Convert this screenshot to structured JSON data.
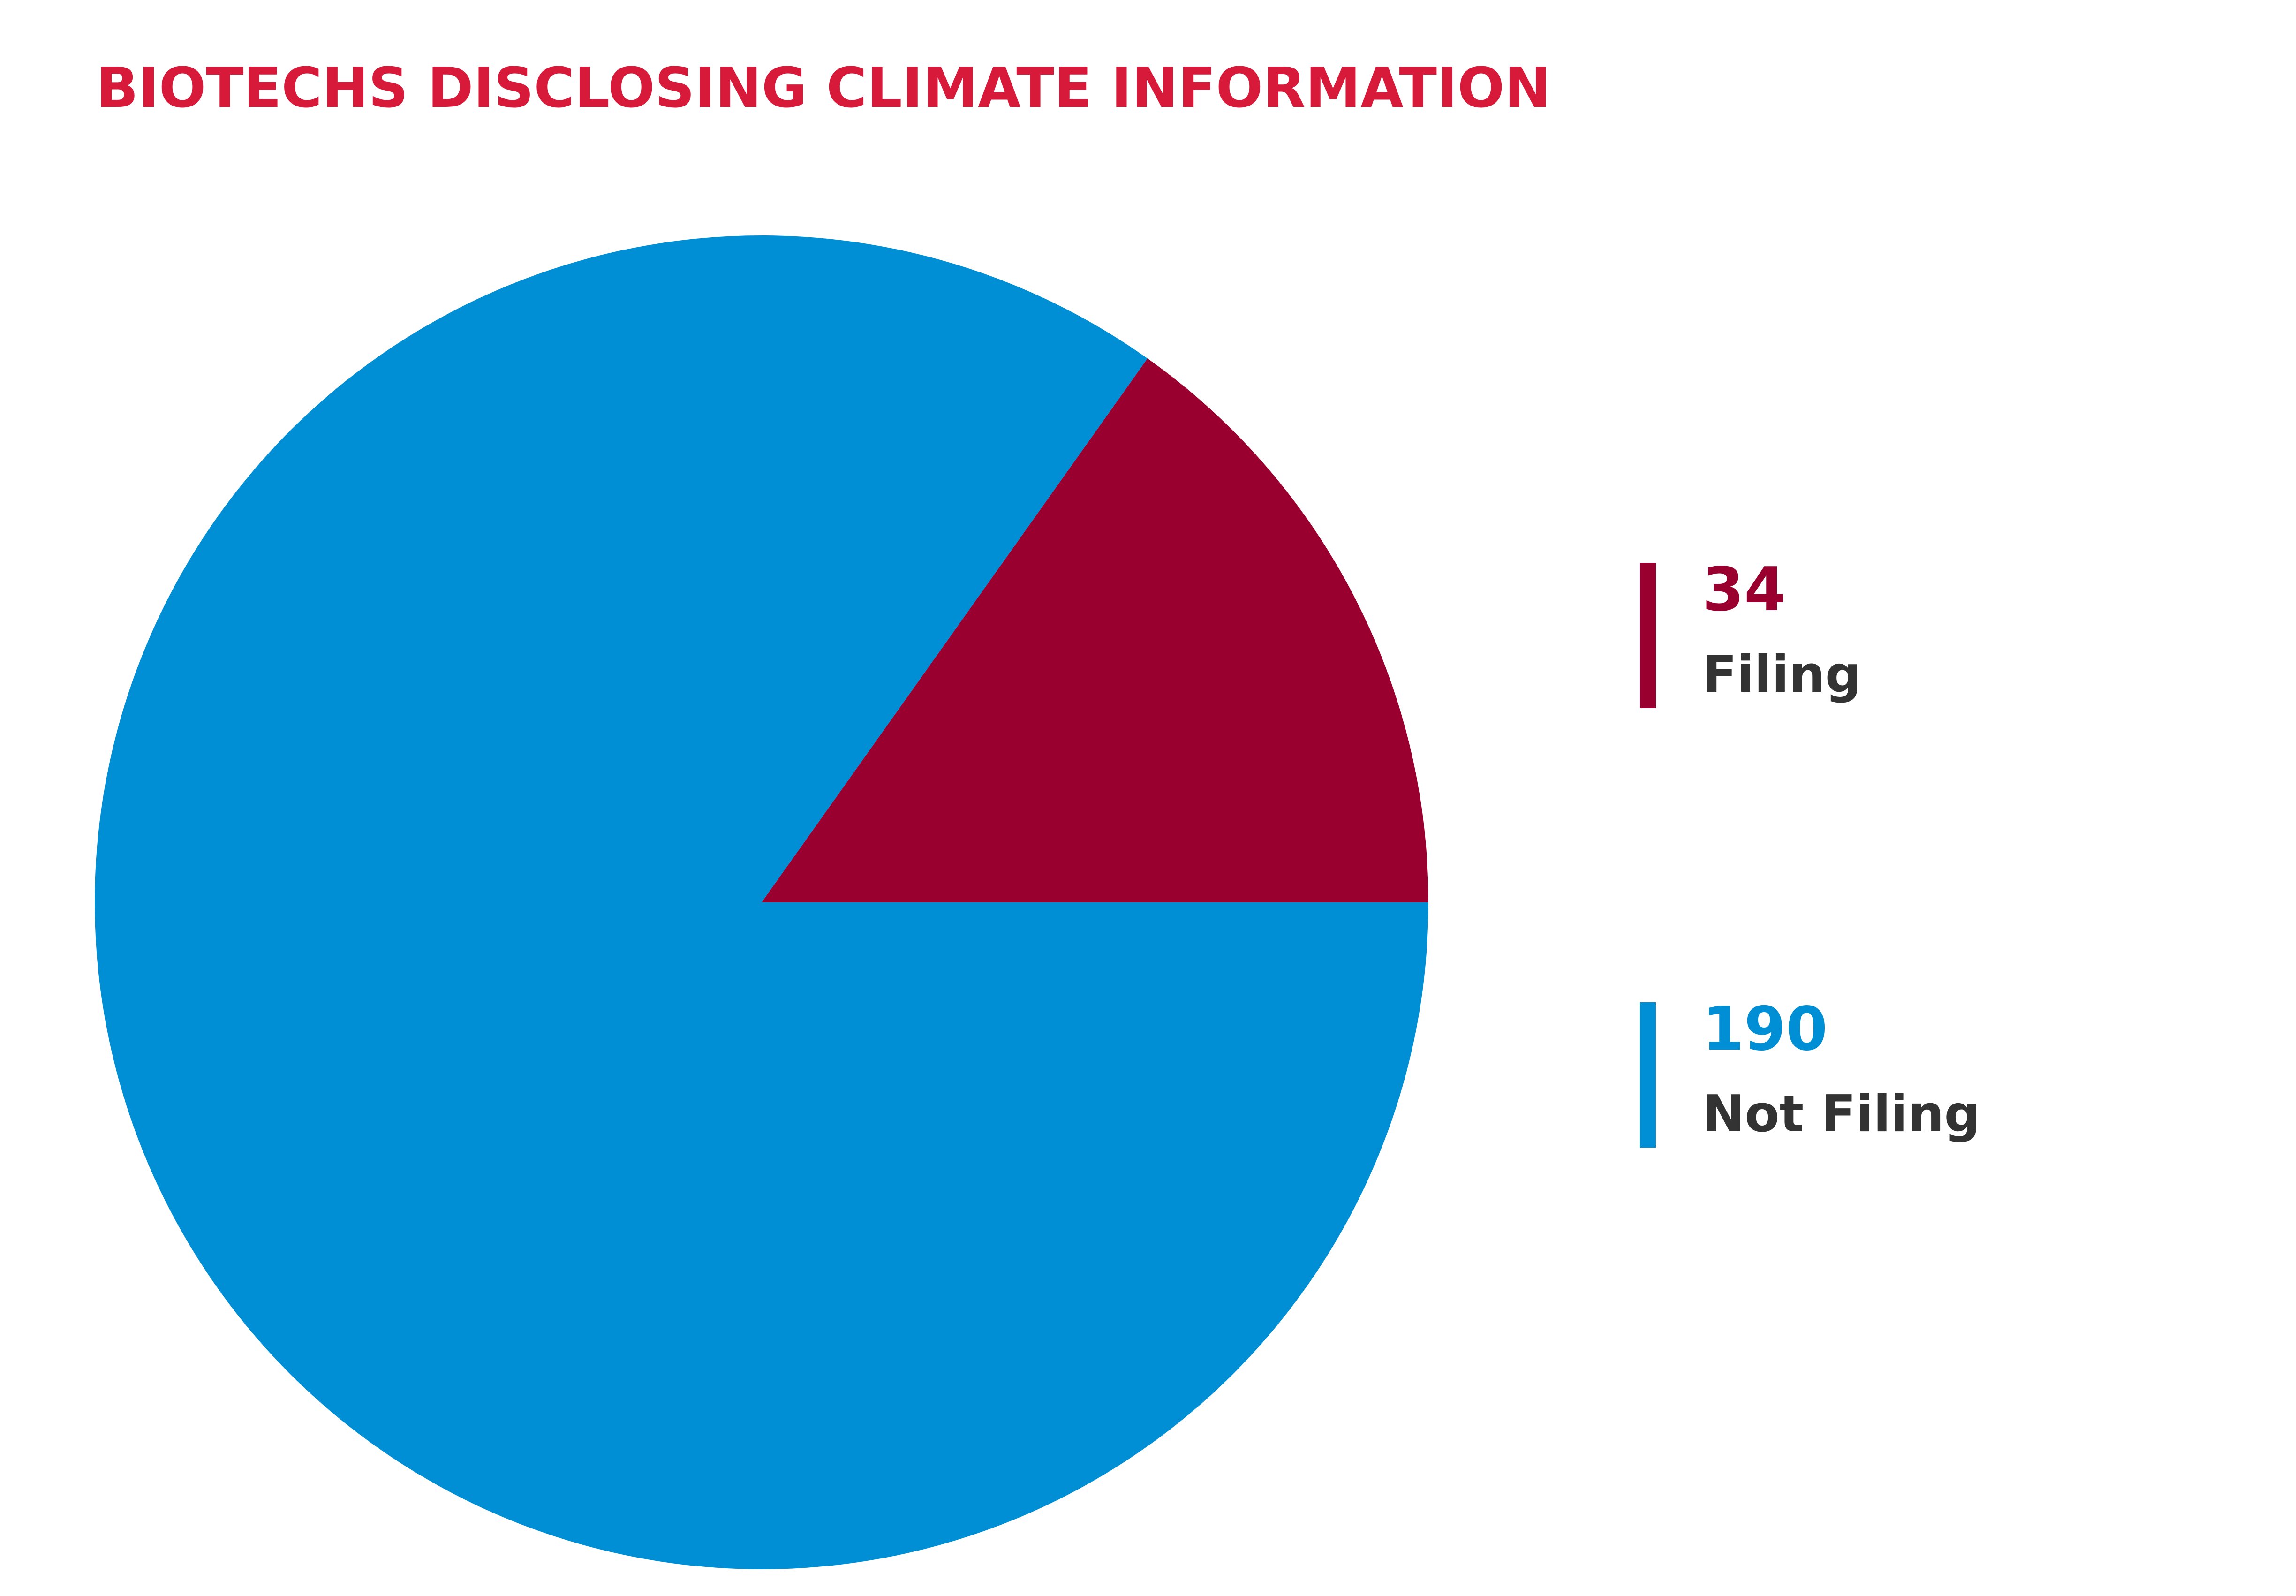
{
  "chart_data": {
    "type": "pie",
    "title": "BIOTECHS DISCLOSING CLIMATE INFORMATION",
    "categories": [
      "Filing",
      "Not Filing"
    ],
    "values": [
      34,
      190
    ],
    "colors": [
      "#990030",
      "#008fd5"
    ]
  }
}
